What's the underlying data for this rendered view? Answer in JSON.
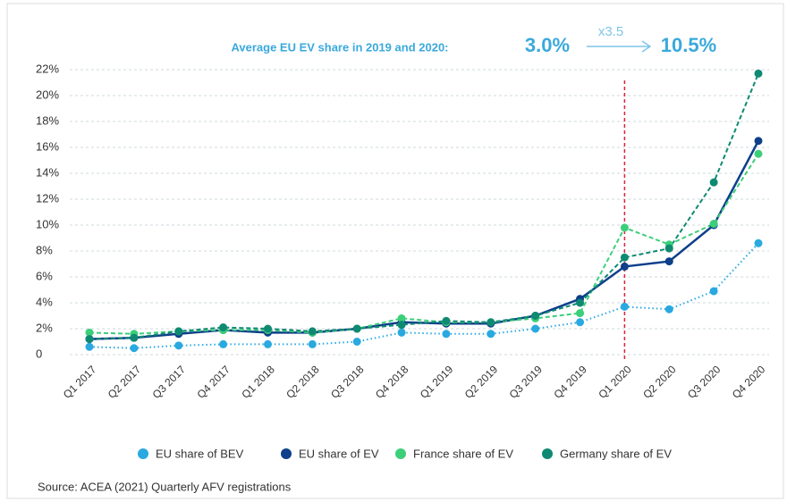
{
  "chart_data": {
    "type": "line",
    "annotation": {
      "label": "Average EU EV share in 2019 and 2020:",
      "from": "3.0%",
      "factor": "x3.5",
      "to": "10.5%"
    },
    "categories": [
      "Q1 2017",
      "Q2 2017",
      "Q3 2017",
      "Q4 2017",
      "Q1 2018",
      "Q2 2018",
      "Q3 2018",
      "Q4 2018",
      "Q1 2019",
      "Q2 2019",
      "Q3 2019",
      "Q4 2019",
      "Q1 2020",
      "Q2 2020",
      "Q3 2020",
      "Q4 2020"
    ],
    "series": [
      {
        "name": "EU share of BEV",
        "color": "#29a9e0",
        "line_style": "dotted",
        "values": [
          0.6,
          0.5,
          0.7,
          0.8,
          0.8,
          0.8,
          1.0,
          1.7,
          1.6,
          1.6,
          2.0,
          2.5,
          3.7,
          3.5,
          4.9,
          8.6
        ]
      },
      {
        "name": "EU share of EV",
        "color": "#0d3f8a",
        "line_style": "solid",
        "values": [
          1.2,
          1.3,
          1.6,
          1.9,
          1.7,
          1.7,
          2.0,
          2.5,
          2.4,
          2.4,
          3.0,
          4.3,
          6.8,
          7.2,
          10.0,
          16.5
        ]
      },
      {
        "name": "France share of EV",
        "color": "#3ccf7a",
        "line_style": "dashed",
        "values": [
          1.7,
          1.6,
          1.8,
          1.9,
          1.9,
          1.7,
          2.0,
          2.8,
          2.5,
          2.5,
          2.8,
          3.2,
          9.8,
          8.5,
          10.1,
          15.5
        ]
      },
      {
        "name": "Germany share of EV",
        "color": "#0f8a72",
        "line_style": "dashed",
        "values": [
          1.2,
          1.3,
          1.8,
          2.1,
          2.0,
          1.8,
          2.0,
          2.3,
          2.6,
          2.5,
          3.0,
          4.0,
          7.5,
          8.2,
          13.3,
          21.7
        ]
      }
    ],
    "ylim": [
      0,
      22
    ],
    "yticks": [
      0,
      {
        "value": 2,
        "label": "2%"
      },
      {
        "value": 4,
        "label": "4%"
      },
      {
        "value": 6,
        "label": "6%"
      },
      {
        "value": 8,
        "label": "8%"
      },
      {
        "value": 10,
        "label": "10%"
      },
      {
        "value": 12,
        "label": "12%"
      },
      {
        "value": 14,
        "label": "14%"
      },
      {
        "value": 16,
        "label": "16%"
      },
      {
        "value": 18,
        "label": "18%"
      },
      {
        "value": 20,
        "label": "20%"
      },
      {
        "value": 22,
        "label": "22%"
      }
    ],
    "grid": true,
    "reference_line": {
      "category": "Q1 2020",
      "color": "#e0203a"
    },
    "legend": "bottom",
    "source": "Source: ACEA (2021) Quarterly AFV registrations"
  }
}
